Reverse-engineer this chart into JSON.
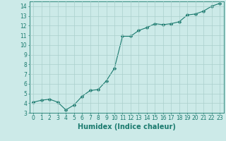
{
  "x": [
    0,
    1,
    2,
    3,
    4,
    5,
    6,
    7,
    8,
    9,
    10,
    11,
    12,
    13,
    14,
    15,
    16,
    17,
    18,
    19,
    20,
    21,
    22,
    23
  ],
  "y": [
    4.1,
    4.3,
    4.4,
    4.1,
    3.3,
    3.8,
    4.7,
    5.3,
    5.4,
    6.3,
    7.6,
    10.9,
    10.9,
    11.5,
    11.8,
    12.2,
    12.1,
    12.2,
    12.4,
    13.1,
    13.2,
    13.5,
    14.0,
    14.3
  ],
  "line_color": "#1a7a6e",
  "marker": "D",
  "marker_size": 2.5,
  "bg_color": "#cceae8",
  "grid_color": "#aacfcc",
  "xlabel": "Humidex (Indice chaleur)",
  "ylim": [
    3,
    14.5
  ],
  "xlim": [
    -0.5,
    23.5
  ],
  "yticks": [
    3,
    4,
    5,
    6,
    7,
    8,
    9,
    10,
    11,
    12,
    13,
    14
  ],
  "xticks": [
    0,
    1,
    2,
    3,
    4,
    5,
    6,
    7,
    8,
    9,
    10,
    11,
    12,
    13,
    14,
    15,
    16,
    17,
    18,
    19,
    20,
    21,
    22,
    23
  ],
  "tick_color": "#1a7a6e",
  "label_fontsize": 5.5,
  "xlabel_fontsize": 7,
  "linewidth": 0.8
}
